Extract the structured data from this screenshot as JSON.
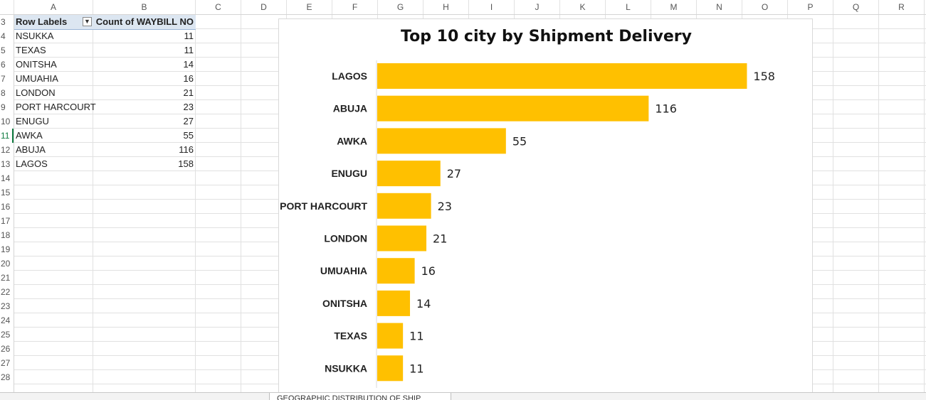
{
  "columns": [
    "A",
    "B",
    "C",
    "D",
    "E",
    "F",
    "G",
    "H",
    "I",
    "J",
    "K",
    "L",
    "M",
    "N",
    "O",
    "P",
    "Q",
    "R"
  ],
  "rows": [
    "3",
    "4",
    "5",
    "6",
    "7",
    "8",
    "9",
    "10",
    "11",
    "12",
    "13",
    "14",
    "15",
    "16",
    "17",
    "18",
    "19",
    "20",
    "21",
    "22",
    "23",
    "24",
    "25",
    "26",
    "27",
    "28"
  ],
  "pivot": {
    "header_a": "Row Labels",
    "header_b": "Count of WAYBILL NO",
    "rows": [
      {
        "label": "NSUKKA",
        "count": "11"
      },
      {
        "label": "TEXAS",
        "count": "11"
      },
      {
        "label": "ONITSHA",
        "count": "14"
      },
      {
        "label": "UMUAHIA",
        "count": "16"
      },
      {
        "label": "LONDON",
        "count": "21"
      },
      {
        "label": "PORT HARCOURT",
        "count": "23"
      },
      {
        "label": "ENUGU",
        "count": "27"
      },
      {
        "label": "AWKA",
        "count": "55"
      },
      {
        "label": "ABUJA",
        "count": "116"
      },
      {
        "label": "LAGOS",
        "count": "158"
      }
    ]
  },
  "sheet_tab": "GEOGRAPHIC DISTRIBUTION OF SHIP",
  "chart_data": {
    "type": "bar",
    "orientation": "horizontal",
    "title": "Top 10 city by Shipment Delivery",
    "categories": [
      "LAGOS",
      "ABUJA",
      "AWKA",
      "ENUGU",
      "PORT HARCOURT",
      "LONDON",
      "UMUAHIA",
      "ONITSHA",
      "TEXAS",
      "NSUKKA"
    ],
    "values": [
      158,
      116,
      55,
      27,
      23,
      21,
      16,
      14,
      11,
      11
    ],
    "xlim": [
      0,
      160
    ],
    "grid": false,
    "data_labels": true,
    "bar_color": "#ffc000"
  }
}
